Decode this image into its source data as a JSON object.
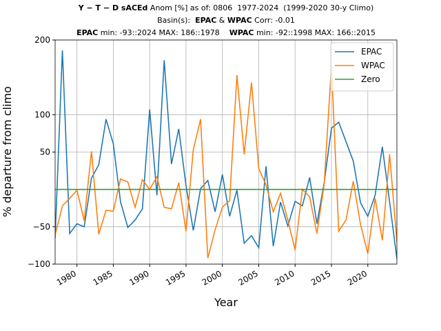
{
  "chart_data": {
    "type": "line",
    "title_lines": [
      [
        {
          "text": "Y − T − D sACEd",
          "bold": true
        },
        {
          "text": " Anom [%] as of: 0806  1977-2024  (1999-2020 30-y Climo)",
          "bold": false
        }
      ],
      [
        {
          "text": "Basin(s):  ",
          "bold": false
        },
        {
          "text": "EPAC",
          "bold": true
        },
        {
          "text": " & ",
          "bold": false
        },
        {
          "text": "WPAC",
          "bold": true
        },
        {
          "text": " Corr: -0.01",
          "bold": false
        }
      ],
      [
        {
          "text": "EPAC",
          "bold": true
        },
        {
          "text": " min: -93::2024 MAX: 186::1978    ",
          "bold": false
        },
        {
          "text": "WPAC",
          "bold": true
        },
        {
          "text": " min: -92::1998 MAX: 166::2015",
          "bold": false
        }
      ]
    ],
    "xlabel": "Year",
    "ylabel": "% departure from climo",
    "x": [
      1977,
      1978,
      1979,
      1980,
      1981,
      1982,
      1983,
      1984,
      1985,
      1986,
      1987,
      1988,
      1989,
      1990,
      1991,
      1992,
      1993,
      1994,
      1995,
      1996,
      1997,
      1998,
      1999,
      2000,
      2001,
      2002,
      2003,
      2004,
      2005,
      2006,
      2007,
      2008,
      2009,
      2010,
      2011,
      2012,
      2013,
      2014,
      2015,
      2016,
      2017,
      2018,
      2019,
      2020,
      2021,
      2022,
      2023,
      2024
    ],
    "series": [
      {
        "name": "EPAC",
        "color": "#1f77b4",
        "values": [
          -65,
          186,
          -59,
          -46,
          -50,
          15,
          33,
          94,
          61,
          -17,
          -51,
          -41,
          -26,
          107,
          -8,
          173,
          34,
          81,
          5,
          -55,
          1,
          12,
          -30,
          20,
          -36,
          -1,
          -72,
          -62,
          -78,
          31,
          -76,
          -17,
          -49,
          -16,
          -22,
          16,
          -46,
          9,
          82,
          90,
          64,
          38,
          -18,
          -36,
          -8,
          57,
          -17,
          -93
        ]
      },
      {
        "name": "WPAC",
        "color": "#ff7f0e",
        "values": [
          -61,
          -22,
          -12,
          -1,
          -42,
          51,
          -60,
          -28,
          -29,
          14,
          10,
          -24,
          13,
          0,
          17,
          -24,
          -26,
          9,
          -56,
          53,
          94,
          -92,
          -54,
          -24,
          -15,
          153,
          47,
          143,
          28,
          6,
          -30,
          -5,
          -41,
          -81,
          0,
          -10,
          -59,
          7,
          166,
          -56,
          -41,
          11,
          -47,
          -86,
          -12,
          -68,
          47,
          -70
        ]
      },
      {
        "name": "Zero",
        "color": "#2ca02c",
        "values": [
          0,
          0,
          0,
          0,
          0,
          0,
          0,
          0,
          0,
          0,
          0,
          0,
          0,
          0,
          0,
          0,
          0,
          0,
          0,
          0,
          0,
          0,
          0,
          0,
          0,
          0,
          0,
          0,
          0,
          0,
          0,
          0,
          0,
          0,
          0,
          0,
          0,
          0,
          0,
          0,
          0,
          0,
          0,
          0,
          0,
          0,
          0,
          0
        ]
      }
    ],
    "xlim": [
      1977,
      2024
    ],
    "xticks": [
      1980,
      1985,
      1990,
      1995,
      2000,
      2005,
      2010,
      2015,
      2020
    ],
    "ylim": [
      -100,
      200
    ],
    "yticks": [
      {
        "value": -100,
        "label": "−100"
      },
      {
        "value": -50,
        "label": "−50"
      },
      50,
      100,
      200
    ],
    "grid": true,
    "legend": "upper right"
  }
}
